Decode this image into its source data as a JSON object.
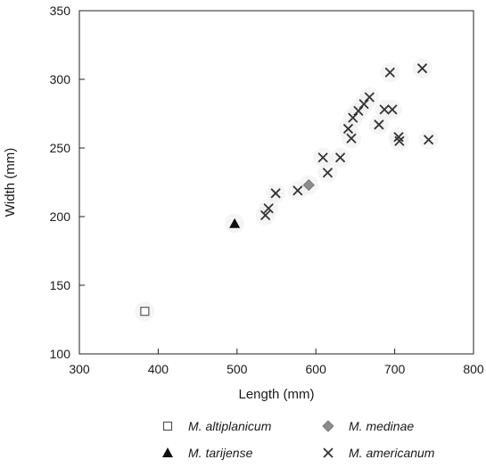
{
  "chart_data": {
    "type": "scatter",
    "title": "",
    "xlabel": "Length (mm)",
    "ylabel": "Width (mm)",
    "xlim": [
      300,
      800
    ],
    "ylim": [
      100,
      350
    ],
    "x_ticks": [
      300,
      400,
      500,
      600,
      700,
      800
    ],
    "y_ticks": [
      100,
      150,
      200,
      250,
      300,
      350
    ],
    "grid": false,
    "legend_position": "bottom",
    "series": [
      {
        "name": "M. altiplanicum",
        "marker": "open-square",
        "color": "#555555",
        "points": [
          [
            383,
            131
          ]
        ]
      },
      {
        "name": "M. medinae",
        "marker": "gray-diamond",
        "color": "#8c8c8c",
        "points": [
          [
            591,
            223
          ]
        ]
      },
      {
        "name": "M. tarijense",
        "marker": "filled-triangle",
        "color": "#111111",
        "points": [
          [
            497,
            195
          ]
        ]
      },
      {
        "name": "M. americanum",
        "marker": "x-cross",
        "color": "#333333",
        "points": [
          [
            536,
            201
          ],
          [
            540,
            206
          ],
          [
            549,
            217
          ],
          [
            577,
            219
          ],
          [
            609,
            243
          ],
          [
            615,
            232
          ],
          [
            631,
            243
          ],
          [
            641,
            264
          ],
          [
            645,
            257
          ],
          [
            647,
            272
          ],
          [
            654,
            277
          ],
          [
            661,
            282
          ],
          [
            668,
            287
          ],
          [
            680,
            267
          ],
          [
            687,
            278
          ],
          [
            694,
            305
          ],
          [
            697,
            278
          ],
          [
            705,
            258
          ],
          [
            706,
            255
          ],
          [
            735,
            308
          ],
          [
            743,
            256
          ]
        ]
      }
    ]
  }
}
